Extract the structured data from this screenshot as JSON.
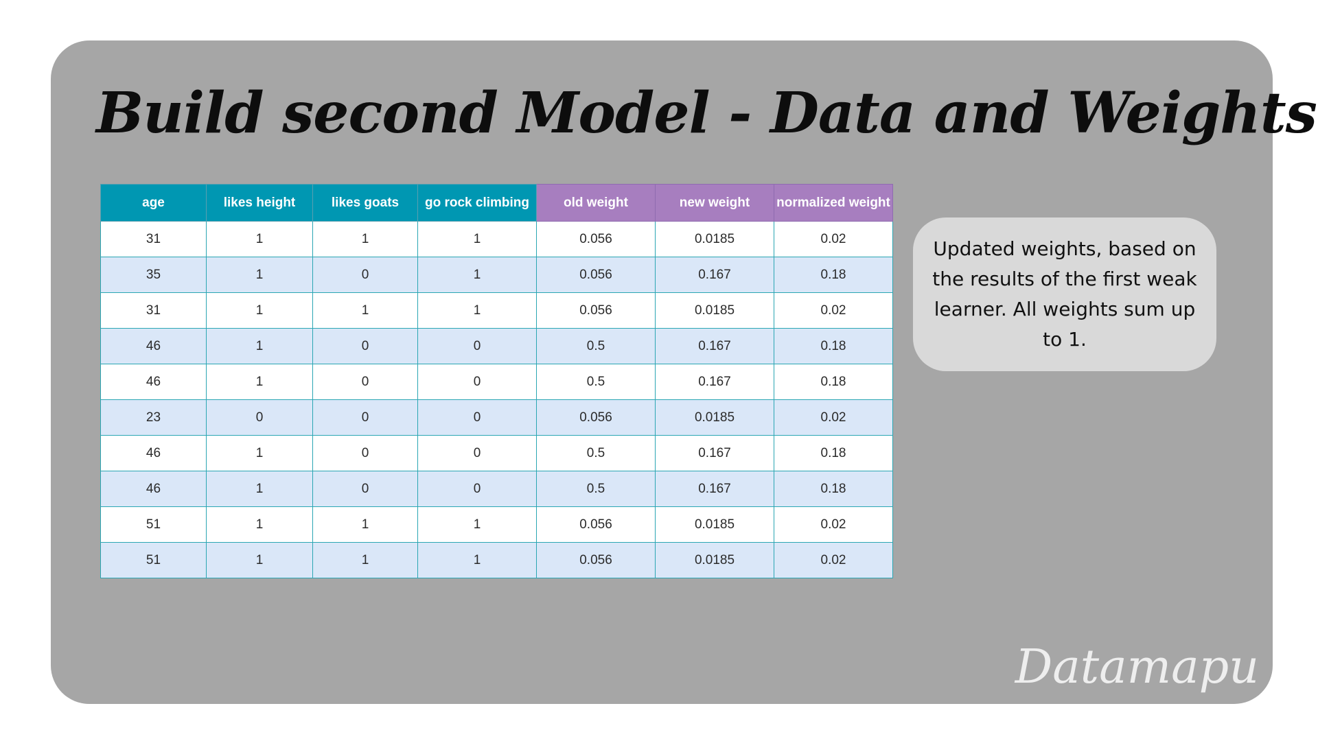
{
  "title": "Build second Model - Data and Weights",
  "table": {
    "headers": [
      {
        "label": "age",
        "color": "#0097b2"
      },
      {
        "label": "likes height",
        "color": "#0097b2"
      },
      {
        "label": "likes goats",
        "color": "#0097b2"
      },
      {
        "label": "go rock climbing",
        "color": "#0097b2"
      },
      {
        "label": "old weight",
        "color": "#a77ebf"
      },
      {
        "label": "new weight",
        "color": "#a77ebf"
      },
      {
        "label": "normalized weight",
        "color": "#a77ebf"
      }
    ],
    "rows": [
      [
        "31",
        "1",
        "1",
        "1",
        "0.056",
        "0.0185",
        "0.02"
      ],
      [
        "35",
        "1",
        "0",
        "1",
        "0.056",
        "0.167",
        "0.18"
      ],
      [
        "31",
        "1",
        "1",
        "1",
        "0.056",
        "0.0185",
        "0.02"
      ],
      [
        "46",
        "1",
        "0",
        "0",
        "0.5",
        "0.167",
        "0.18"
      ],
      [
        "46",
        "1",
        "0",
        "0",
        "0.5",
        "0.167",
        "0.18"
      ],
      [
        "23",
        "0",
        "0",
        "0",
        "0.056",
        "0.0185",
        "0.02"
      ],
      [
        "46",
        "1",
        "0",
        "0",
        "0.5",
        "0.167",
        "0.18"
      ],
      [
        "46",
        "1",
        "0",
        "0",
        "0.5",
        "0.167",
        "0.18"
      ],
      [
        "51",
        "1",
        "1",
        "1",
        "0.056",
        "0.0185",
        "0.02"
      ],
      [
        "51",
        "1",
        "1",
        "1",
        "0.056",
        "0.0185",
        "0.02"
      ]
    ]
  },
  "note": "Updated weights, based on the results of the first weak learner. All weights sum up to 1.",
  "logo": "Datamapu",
  "colors": {
    "background": "#a6a6a6",
    "header_teal": "#0097b2",
    "header_purple": "#a77ebf",
    "row_alt": "#dae7f8",
    "note_bg": "#d9d9d9"
  }
}
